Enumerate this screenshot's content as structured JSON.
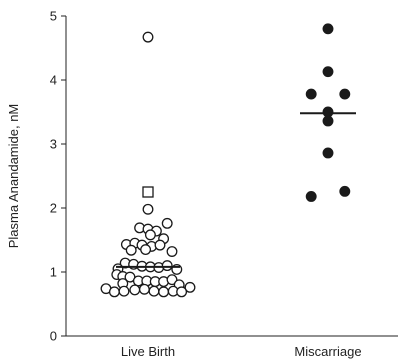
{
  "chart_data": {
    "type": "scatter",
    "ylabel": "Plasma Anandamide, nM",
    "xlabel": "",
    "ylim": [
      0,
      5
    ],
    "yticks": [
      0,
      1,
      2,
      3,
      4,
      5
    ],
    "grid": false,
    "categories": [
      "Live Birth",
      "Miscarriage"
    ],
    "series": [
      {
        "category": "Live Birth",
        "marker": "open-circle",
        "median": 1.08,
        "points": [
          {
            "offset": 0.0,
            "y": 4.67
          },
          {
            "offset": 0.0,
            "y": 1.98
          },
          {
            "offset": 0.32,
            "y": 1.76
          },
          {
            "offset": -0.14,
            "y": 1.69
          },
          {
            "offset": 0.0,
            "y": 1.67
          },
          {
            "offset": 0.14,
            "y": 1.64
          },
          {
            "offset": 0.04,
            "y": 1.58
          },
          {
            "offset": 0.26,
            "y": 1.52
          },
          {
            "offset": -0.36,
            "y": 1.43
          },
          {
            "offset": -0.22,
            "y": 1.45
          },
          {
            "offset": -0.1,
            "y": 1.42
          },
          {
            "offset": 0.06,
            "y": 1.4
          },
          {
            "offset": 0.2,
            "y": 1.42
          },
          {
            "offset": -0.28,
            "y": 1.34
          },
          {
            "offset": -0.04,
            "y": 1.35
          },
          {
            "offset": 0.4,
            "y": 1.32
          },
          {
            "offset": -0.38,
            "y": 1.14
          },
          {
            "offset": -0.24,
            "y": 1.12
          },
          {
            "offset": -0.1,
            "y": 1.09
          },
          {
            "offset": 0.04,
            "y": 1.08
          },
          {
            "offset": 0.18,
            "y": 1.07
          },
          {
            "offset": 0.32,
            "y": 1.1
          },
          {
            "offset": -0.5,
            "y": 1.05
          },
          {
            "offset": 0.48,
            "y": 1.04
          },
          {
            "offset": -0.52,
            "y": 0.96
          },
          {
            "offset": -0.42,
            "y": 0.93
          },
          {
            "offset": -0.3,
            "y": 0.92
          },
          {
            "offset": -0.16,
            "y": 0.86
          },
          {
            "offset": -0.02,
            "y": 0.86
          },
          {
            "offset": 0.12,
            "y": 0.85
          },
          {
            "offset": 0.26,
            "y": 0.85
          },
          {
            "offset": 0.4,
            "y": 0.88
          },
          {
            "offset": -0.42,
            "y": 0.82
          },
          {
            "offset": 0.52,
            "y": 0.8
          },
          {
            "offset": -0.7,
            "y": 0.74
          },
          {
            "offset": 0.7,
            "y": 0.76
          },
          {
            "offset": -0.56,
            "y": 0.69
          },
          {
            "offset": -0.4,
            "y": 0.7
          },
          {
            "offset": -0.22,
            "y": 0.72
          },
          {
            "offset": -0.06,
            "y": 0.73
          },
          {
            "offset": 0.1,
            "y": 0.7
          },
          {
            "offset": 0.26,
            "y": 0.69
          },
          {
            "offset": 0.42,
            "y": 0.7
          },
          {
            "offset": 0.56,
            "y": 0.69
          }
        ],
        "square_points": [
          {
            "offset": 0.0,
            "y": 2.25
          }
        ]
      },
      {
        "category": "Miscarriage",
        "marker": "filled-circle",
        "median": 3.48,
        "points": [
          {
            "offset": 0.0,
            "y": 4.8
          },
          {
            "offset": 0.0,
            "y": 4.13
          },
          {
            "offset": -0.28,
            "y": 3.78
          },
          {
            "offset": 0.28,
            "y": 3.78
          },
          {
            "offset": 0.0,
            "y": 3.5
          },
          {
            "offset": 0.0,
            "y": 3.36
          },
          {
            "offset": 0.0,
            "y": 2.86
          },
          {
            "offset": -0.28,
            "y": 2.18
          },
          {
            "offset": 0.28,
            "y": 2.26
          }
        ]
      }
    ]
  }
}
